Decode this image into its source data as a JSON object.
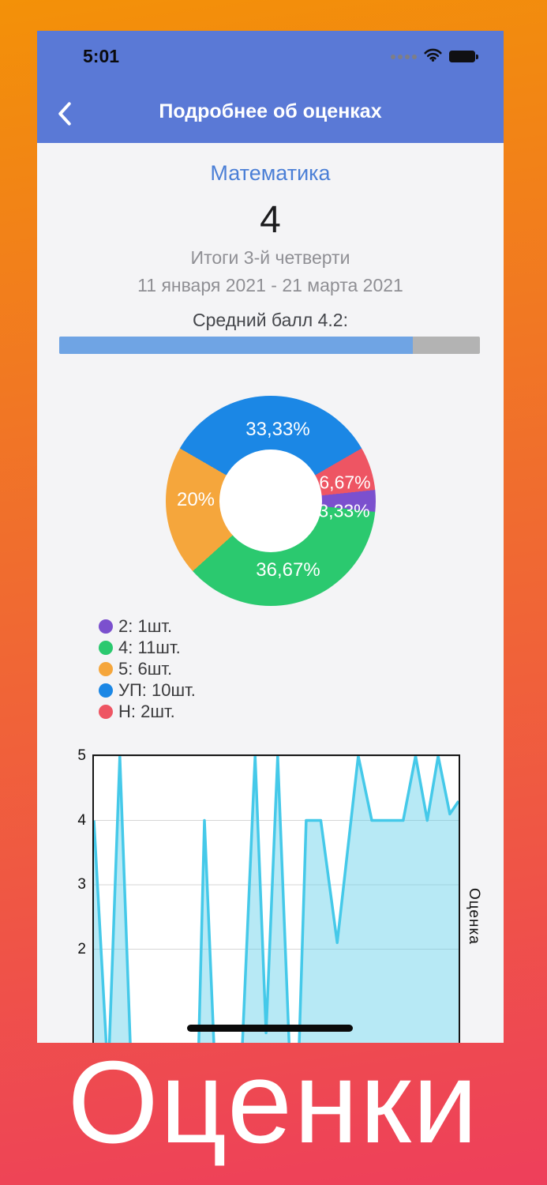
{
  "status_bar": {
    "time": "5:01",
    "icons": [
      "signal-dots-icon",
      "wifi-icon",
      "battery-icon"
    ]
  },
  "nav": {
    "title": "Подробнее об оценках",
    "back_icon": "chevron-left-icon"
  },
  "summary": {
    "subject": "Математика",
    "grade": "4",
    "period_title": "Итоги 3-й четверти",
    "period_dates": "11 января 2021 - 21 марта 2021",
    "average_label": "Средний балл 4.2:",
    "average_percent": 84
  },
  "chart_data": [
    {
      "type": "pie",
      "donut": true,
      "total": 30,
      "slices": [
        {
          "label": "2",
          "count": 1,
          "percent": "3,33%",
          "legend": "2: 1шт.",
          "color": "#7B50CE"
        },
        {
          "label": "4",
          "count": 11,
          "percent": "36,67%",
          "legend": "4: 11шт.",
          "color": "#2BC96F"
        },
        {
          "label": "5",
          "count": 6,
          "percent": "20%",
          "legend": "5: 6шт.",
          "color": "#F5A63C"
        },
        {
          "label": "УП",
          "count": 10,
          "percent": "33,33%",
          "legend": "УП: 10шт.",
          "color": "#1B87E5"
        },
        {
          "label": "Н",
          "count": 2,
          "percent": "6,67%",
          "legend": "Н: 2шт.",
          "color": "#EE5563"
        }
      ],
      "draw_order": [
        "УП",
        "Н",
        "2",
        "4",
        "5"
      ],
      "start_angle_deg": 300,
      "legend_position": "bottom-left"
    },
    {
      "type": "area",
      "ylabel": "Оценка",
      "yticks": [
        5,
        4,
        3,
        2
      ],
      "ylim_visible": [
        0.5,
        5
      ],
      "grid": "horizontal",
      "line_color": "#45C9E9",
      "fill_color": "rgba(96,206,233,0.45)",
      "points_pct_value": [
        [
          0,
          4
        ],
        [
          3.9,
          0
        ],
        [
          7.1,
          5
        ],
        [
          10.3,
          0
        ],
        [
          28.5,
          0
        ],
        [
          30.3,
          4
        ],
        [
          33.3,
          0
        ],
        [
          40.3,
          0
        ],
        [
          44.2,
          5
        ],
        [
          47.2,
          0.7
        ],
        [
          50.4,
          5
        ],
        [
          53.9,
          0
        ],
        [
          56,
          0
        ],
        [
          58.2,
          4
        ],
        [
          62.2,
          4
        ],
        [
          66.7,
          2.1
        ],
        [
          72.5,
          5
        ],
        [
          76.2,
          4
        ],
        [
          84.8,
          4
        ],
        [
          88.2,
          5
        ],
        [
          91.4,
          4
        ],
        [
          94.4,
          5
        ],
        [
          97.6,
          4.1
        ],
        [
          100,
          4.3
        ]
      ]
    }
  ],
  "footer": {
    "app_title": "Оценки"
  },
  "colors": {
    "background_gradient": [
      "#F39108",
      "#EE3F5B"
    ],
    "header_blue": "#5A79D6",
    "subject_blue": "#4B7FD6",
    "progress_fill": "#6FA4E4",
    "progress_track": "#B3B3B3",
    "content_bg": "#F4F4F6",
    "muted_text": "#8F8F94",
    "dark_text": "#3A3A3C"
  }
}
